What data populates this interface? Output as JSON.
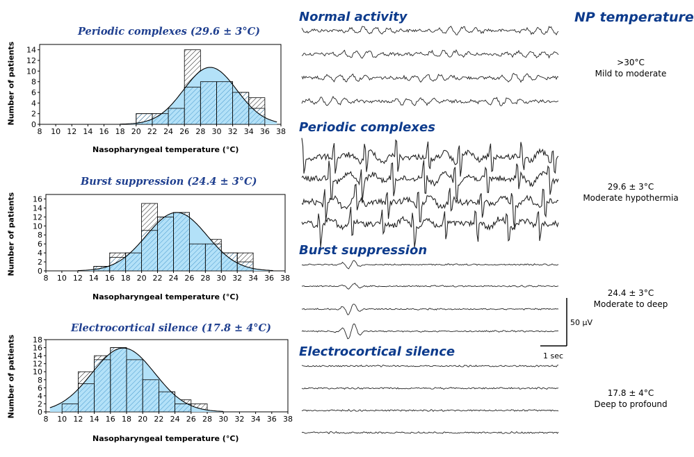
{
  "np_header": "NP temperature",
  "x_axis_label": "Nasopharyngeal temperature (°C)",
  "y_axis_label": "Number of patients",
  "chart_data": [
    {
      "type": "bar",
      "title": "Periodic complexes (29.6 ± 3°C)",
      "xlabel": "Nasopharyngeal temperature (°C)",
      "ylabel": "Number of patients",
      "xlim": [
        8,
        38
      ],
      "ylim": [
        0,
        15
      ],
      "xticks": [
        8,
        10,
        12,
        14,
        16,
        18,
        20,
        22,
        24,
        26,
        28,
        30,
        32,
        34,
        36,
        38
      ],
      "yticks": [
        0,
        2,
        4,
        6,
        8,
        10,
        12,
        14
      ],
      "bins": [
        20,
        22,
        24,
        26,
        28,
        30,
        32,
        34
      ],
      "total": [
        2,
        2,
        3,
        14,
        8,
        8,
        6,
        5
      ],
      "in_curve": [
        2,
        2,
        3,
        7,
        8,
        8,
        6,
        3
      ],
      "normal_fit": {
        "mean": 29.2,
        "peak": 10.7,
        "sd": 3.3,
        "x_range": [
          18,
          37.5
        ]
      }
    },
    {
      "type": "bar",
      "title": "Burst suppression (24.4 ± 3°C)",
      "xlabel": "Nasopharyngeal temperature (°C)",
      "ylabel": "Number of patients",
      "xlim": [
        8,
        38
      ],
      "ylim": [
        0,
        17
      ],
      "xticks": [
        8,
        10,
        12,
        14,
        16,
        18,
        20,
        22,
        24,
        26,
        28,
        30,
        32,
        34,
        36,
        38
      ],
      "yticks": [
        0,
        2,
        4,
        6,
        8,
        10,
        12,
        14,
        16
      ],
      "bins": [
        14,
        16,
        18,
        20,
        22,
        24,
        26,
        28,
        30,
        32
      ],
      "total": [
        1,
        4,
        4,
        15,
        12,
        13,
        6,
        7,
        4,
        4
      ],
      "in_curve": [
        1,
        3,
        4,
        9,
        12,
        13,
        6,
        6,
        4,
        2
      ],
      "normal_fit": {
        "mean": 24.4,
        "peak": 13.0,
        "sd": 3.8,
        "x_range": [
          12,
          36.5
        ]
      }
    },
    {
      "type": "bar",
      "title": "Electrocortical silence (17.8 ± 4°C)",
      "xlabel": "Nasopharyngeal temperature (°C)",
      "ylabel": "Number of patients",
      "xlim": [
        8,
        38
      ],
      "ylim": [
        0,
        18
      ],
      "xticks": [
        8,
        10,
        12,
        14,
        16,
        18,
        20,
        22,
        24,
        26,
        28,
        30,
        32,
        34,
        36,
        38
      ],
      "yticks": [
        0,
        2,
        4,
        6,
        8,
        10,
        12,
        14,
        16,
        18
      ],
      "bins": [
        10,
        12,
        14,
        16,
        18,
        20,
        22,
        24,
        26
      ],
      "total": [
        2,
        10,
        14,
        16,
        13,
        8,
        5,
        3,
        2
      ],
      "in_curve": [
        2,
        7,
        13,
        16,
        13,
        8,
        5,
        2,
        0
      ],
      "normal_fit": {
        "mean": 17.6,
        "peak": 15.9,
        "sd": 3.9,
        "x_range": [
          8.5,
          30
        ]
      }
    }
  ],
  "eeg_sections": [
    {
      "title": "Normal activity",
      "np_value": ">30°C",
      "np_desc": "Mild to moderate",
      "type": "normal"
    },
    {
      "title": "Periodic complexes",
      "np_value": "29.6 ± 3°C",
      "np_desc": "Moderate hypothermia",
      "type": "periodic"
    },
    {
      "title": "Burst suppression",
      "np_value": "24.4 ± 3°C",
      "np_desc": "Moderate to deep",
      "type": "burst"
    },
    {
      "title": "Electrocortical silence",
      "np_value": "17.8 ± 4°C",
      "np_desc": "Deep to profound",
      "type": "silence"
    }
  ],
  "scale_bar": {
    "amplitude": "50 µV",
    "time": "1 sec"
  },
  "colors": {
    "title_blue": "#0d3b8c",
    "fill_blue": "#b3e1f8",
    "hatch_blue": "#3a90c8",
    "hatch_black": "#000000"
  }
}
